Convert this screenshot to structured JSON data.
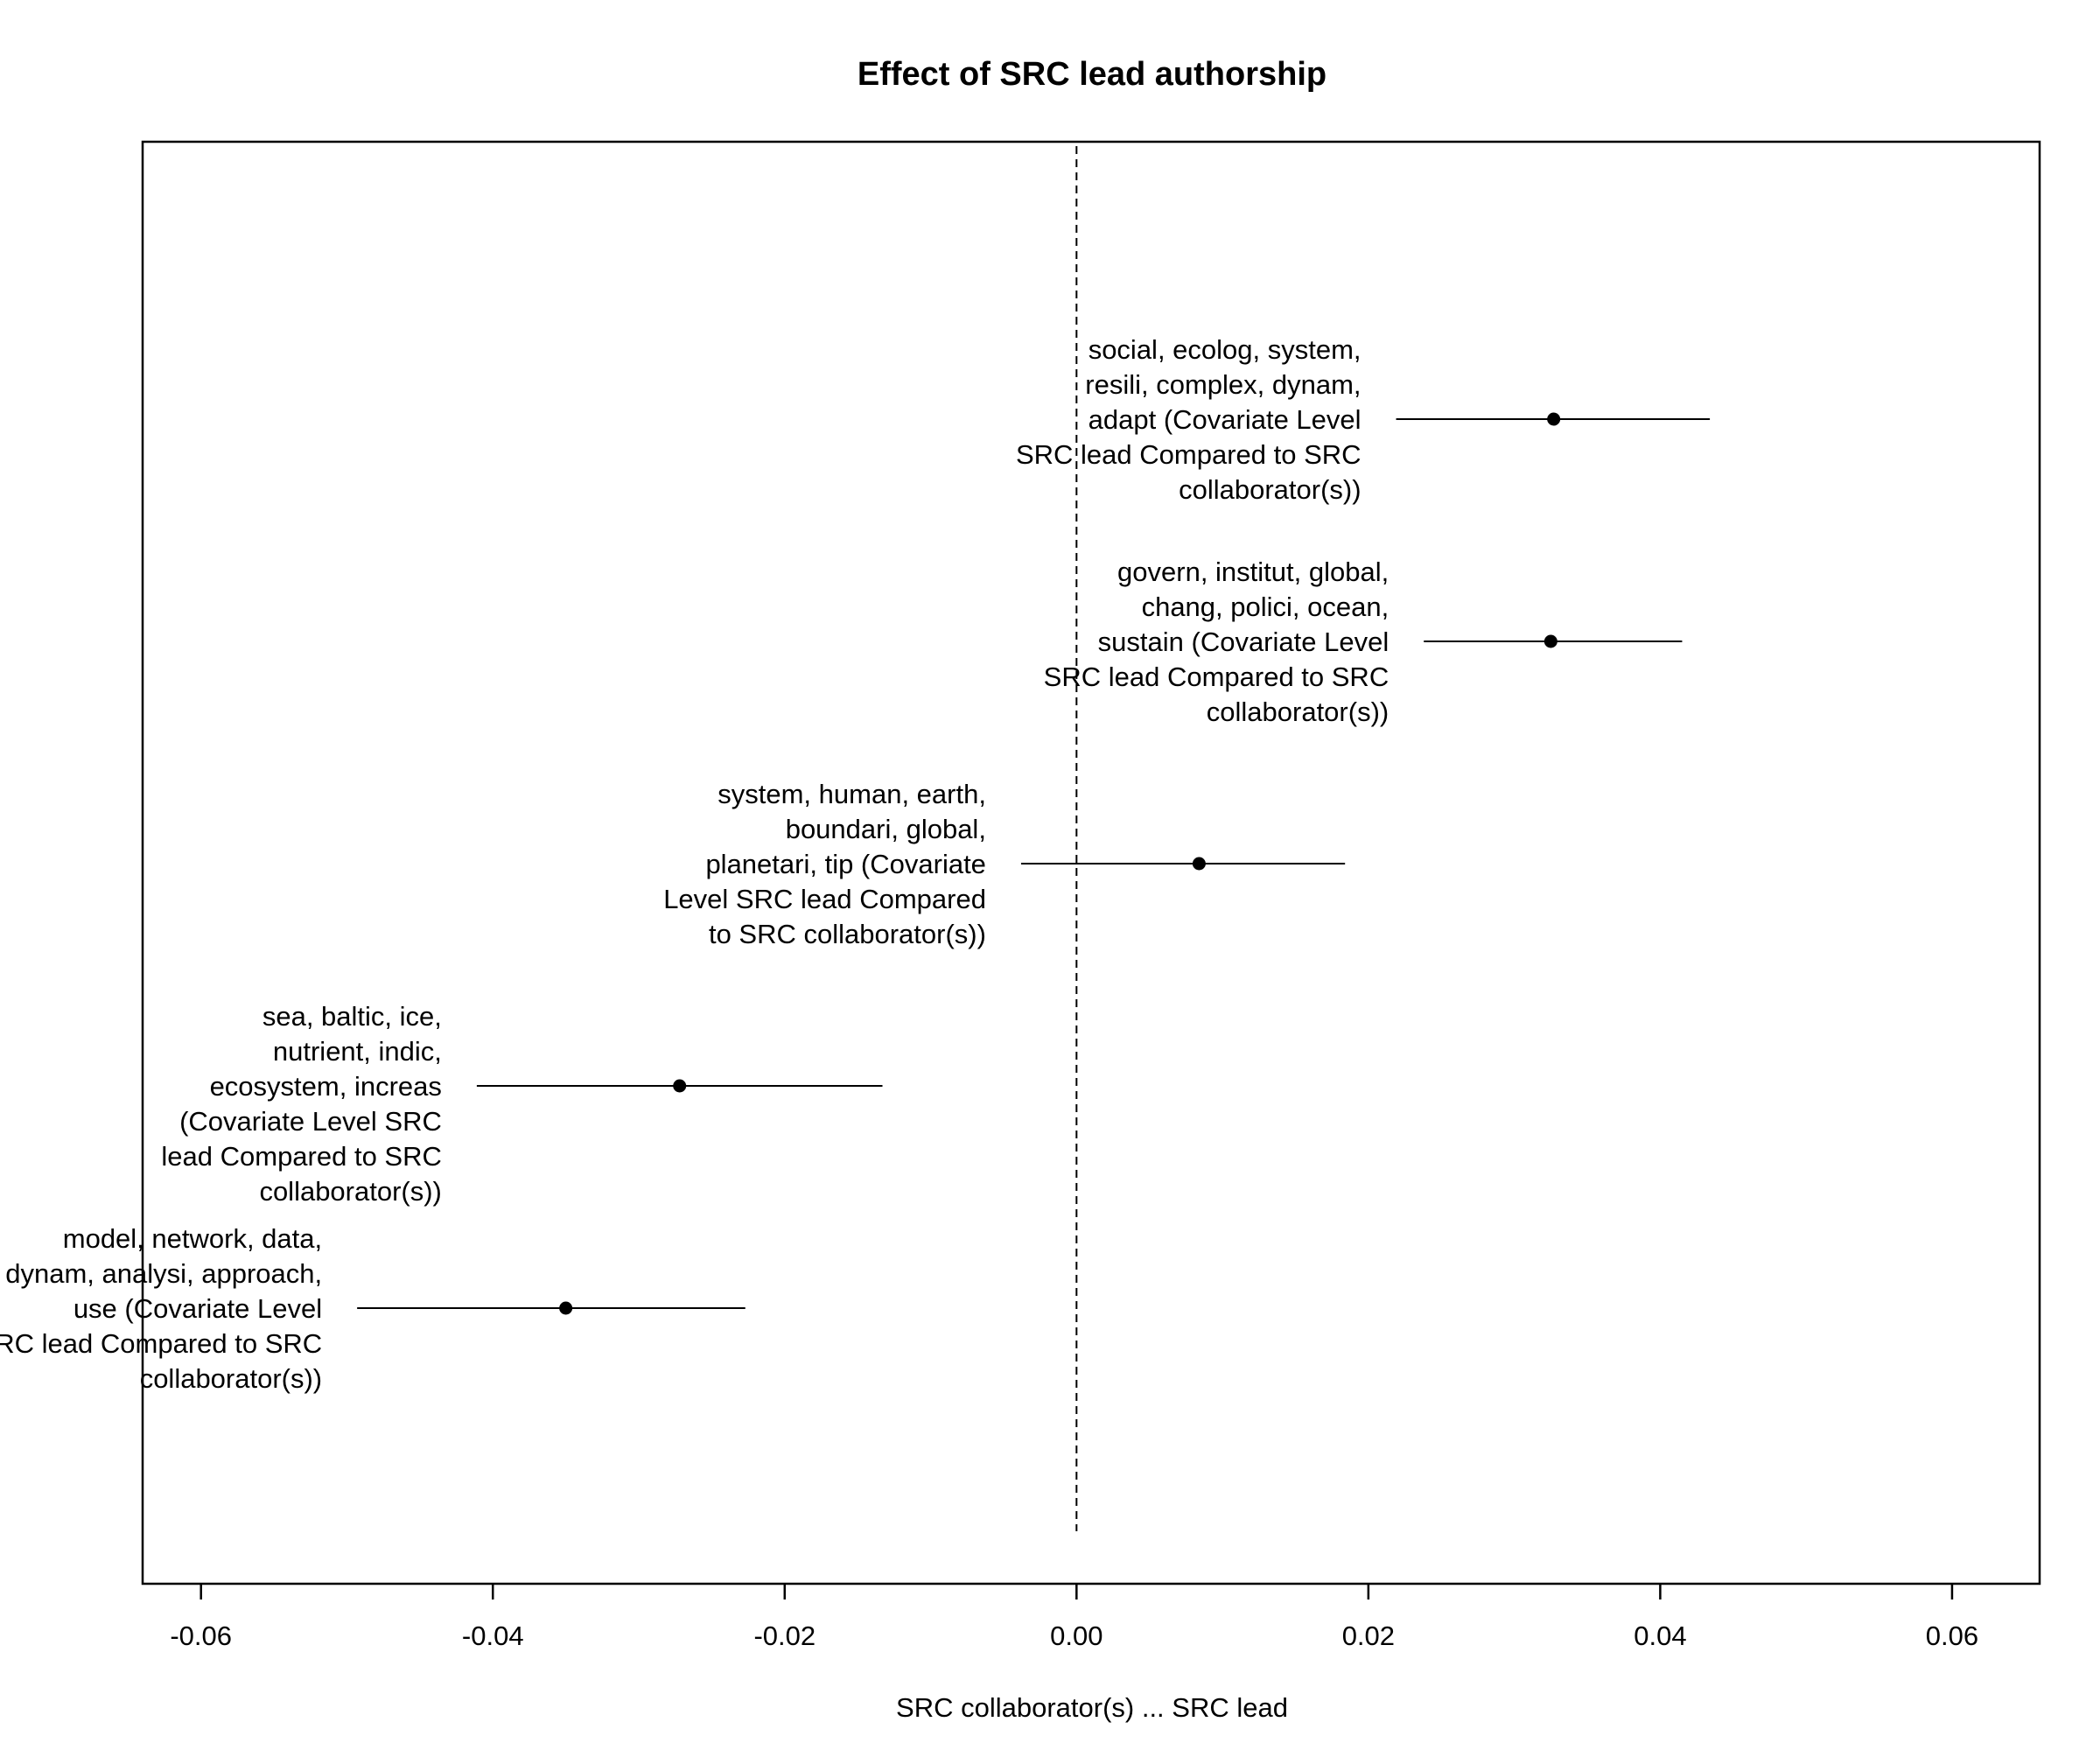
{
  "chart_data": {
    "type": "scatter",
    "subtype": "point-estimate-with-confidence-intervals",
    "title": "Effect of SRC lead authorship",
    "xlabel": "SRC collaborator(s) ... SRC lead",
    "ylabel": "",
    "xlim": [
      -0.064,
      0.066
    ],
    "xticks": [
      -0.06,
      -0.04,
      -0.02,
      0.0,
      0.02,
      0.04,
      0.06
    ],
    "xtick_labels": [
      "-0.06",
      "-0.04",
      "-0.02",
      "0.00",
      "0.02",
      "0.04",
      "0.06"
    ],
    "reference_line": {
      "x": 0.0,
      "style": "dashed"
    },
    "grid": false,
    "legend": "none",
    "colors": {
      "points": "#000000",
      "lines": "#000000",
      "frame": "#000000"
    },
    "points": [
      {
        "label_lines": [
          "social, ecolog, system,",
          "resili, complex, dynam,",
          "adapt (Covariate Level",
          "SRC lead Compared to SRC",
          "collaborator(s))"
        ],
        "estimate": 0.0327,
        "ci_low": 0.0219,
        "ci_high": 0.0434
      },
      {
        "label_lines": [
          "govern, institut, global,",
          "chang, polici, ocean,",
          "sustain (Covariate Level",
          "SRC lead Compared to SRC",
          "collaborator(s))"
        ],
        "estimate": 0.0325,
        "ci_low": 0.0238,
        "ci_high": 0.0415
      },
      {
        "label_lines": [
          "system, human, earth,",
          "boundari, global,",
          "planetari, tip (Covariate",
          "Level SRC lead Compared",
          "to SRC collaborator(s))"
        ],
        "estimate": 0.0084,
        "ci_low": -0.0038,
        "ci_high": 0.0184
      },
      {
        "label_lines": [
          "sea, baltic, ice,",
          "nutrient, indic,",
          "ecosystem, increas",
          "(Covariate Level SRC",
          "lead Compared to SRC",
          "collaborator(s))"
        ],
        "estimate": -0.0272,
        "ci_low": -0.0411,
        "ci_high": -0.0133
      },
      {
        "label_lines": [
          "model, network, data,",
          "dynam, analysi, approach,",
          "use (Covariate Level",
          "SRC lead Compared to SRC",
          "collaborator(s))"
        ],
        "estimate": -0.035,
        "ci_low": -0.0493,
        "ci_high": -0.0227
      }
    ]
  }
}
